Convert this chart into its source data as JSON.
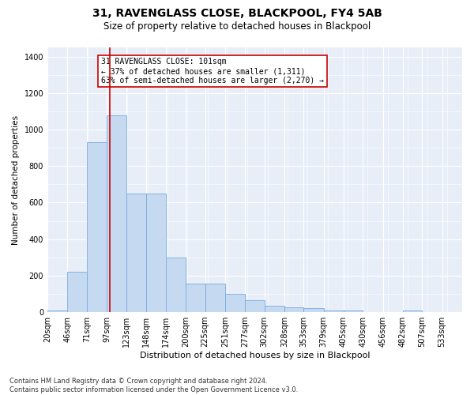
{
  "title": "31, RAVENGLASS CLOSE, BLACKPOOL, FY4 5AB",
  "subtitle": "Size of property relative to detached houses in Blackpool",
  "xlabel": "Distribution of detached houses by size in Blackpool",
  "ylabel": "Number of detached properties",
  "bin_edges": [
    20,
    46,
    71,
    97,
    123,
    148,
    174,
    200,
    225,
    251,
    277,
    302,
    328,
    353,
    379,
    405,
    430,
    456,
    482,
    507,
    533,
    559
  ],
  "bin_labels": [
    "20sqm",
    "46sqm",
    "71sqm",
    "97sqm",
    "123sqm",
    "148sqm",
    "174sqm",
    "200sqm",
    "225sqm",
    "251sqm",
    "277sqm",
    "302sqm",
    "328sqm",
    "353sqm",
    "379sqm",
    "405sqm",
    "430sqm",
    "456sqm",
    "482sqm",
    "507sqm",
    "533sqm"
  ],
  "bar_heights": [
    10,
    220,
    930,
    1080,
    650,
    650,
    300,
    155,
    155,
    100,
    65,
    35,
    25,
    20,
    10,
    10,
    0,
    0,
    10,
    0,
    0
  ],
  "bar_color": "#c5d9f0",
  "bar_edge_color": "#7aabe0",
  "vline_x": 101,
  "vline_color": "#cc0000",
  "annotation_text": "31 RAVENGLASS CLOSE: 101sqm\n← 37% of detached houses are smaller (1,311)\n63% of semi-detached houses are larger (2,270) →",
  "annotation_box_color": "white",
  "annotation_box_edge": "#cc0000",
  "ylim": [
    0,
    1450
  ],
  "yticks": [
    0,
    200,
    400,
    600,
    800,
    1000,
    1200,
    1400
  ],
  "bg_color": "#e8eef8",
  "grid_color": "#ffffff",
  "footnote": "Contains HM Land Registry data © Crown copyright and database right 2024.\nContains public sector information licensed under the Open Government Licence v3.0.",
  "title_fontsize": 10,
  "subtitle_fontsize": 8.5,
  "xlabel_fontsize": 8,
  "ylabel_fontsize": 7.5,
  "tick_fontsize": 7,
  "annotation_fontsize": 7,
  "footnote_fontsize": 6
}
